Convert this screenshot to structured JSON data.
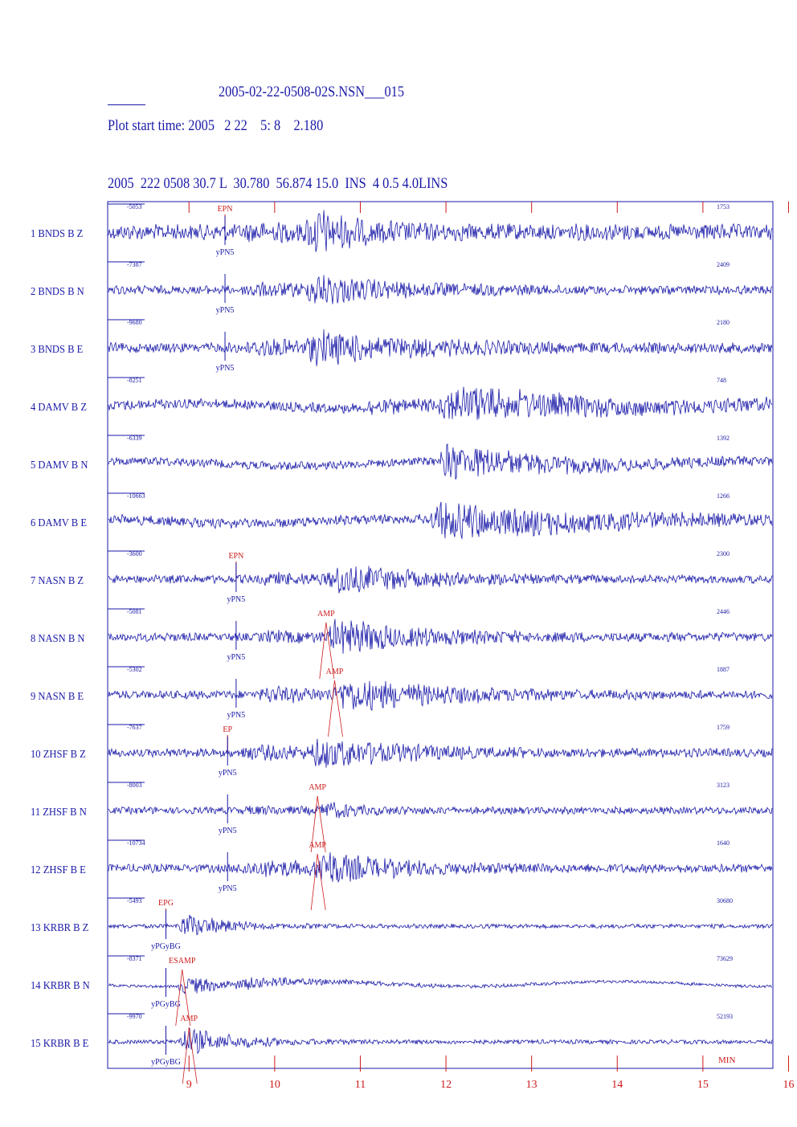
{
  "header": {
    "title": "2005-02-22-0508-02S.NSN___015",
    "plot_start": "Plot start time: 2005   2 22    5: 8    2.180",
    "event_line": "2005  222 0508 30.7 L  30.780  56.874 15.0  INS  4 0.5 4.0LINS"
  },
  "colors": {
    "trace": "#1a1aa8",
    "pick": "#cc1a1a",
    "frame": "#1a1aa8"
  },
  "axis": {
    "unit_label": "MIN",
    "ticks": [
      "9",
      "10",
      "11",
      "12",
      "13",
      "14",
      "15",
      "16"
    ]
  },
  "channels": [
    {
      "label": "1  BNDS   B  Z",
      "left_value": "-5053",
      "right_value": "1753",
      "amp": 11,
      "bursts": [
        {
          "t": 9.6,
          "a": 0.4,
          "d": 1.6
        },
        {
          "t": 10.35,
          "a": 2.8,
          "d": 0.45
        }
      ],
      "picks": [
        {
          "t": 9.42,
          "text": "EPN",
          "color": "pick",
          "pos": "above"
        },
        {
          "t": 9.42,
          "text": "yPN5",
          "color": "trace",
          "pos": "below"
        }
      ]
    },
    {
      "label": "2  BNDS   B  N",
      "left_value": "-7387",
      "right_value": "2409",
      "amp": 6,
      "bursts": [
        {
          "t": 9.6,
          "a": 1.0,
          "d": 1.6
        },
        {
          "t": 10.35,
          "a": 2.6,
          "d": 0.9
        }
      ],
      "picks": [
        {
          "t": 9.42,
          "text": "yPN5",
          "color": "trace",
          "pos": "below"
        }
      ]
    },
    {
      "label": "3  BNDS   B  E",
      "left_value": "-9680",
      "right_value": "2180",
      "amp": 7,
      "bursts": [
        {
          "t": 9.6,
          "a": 1.0,
          "d": 1.6
        },
        {
          "t": 10.35,
          "a": 2.6,
          "d": 1.0
        }
      ],
      "picks": [
        {
          "t": 9.42,
          "text": "yPN5",
          "color": "trace",
          "pos": "below"
        }
      ]
    },
    {
      "label": "4  DAMV   B  Z",
      "left_value": "-8251",
      "right_value": "748",
      "amp": 7,
      "bursts": [
        {
          "t": 11.0,
          "a": 0.8,
          "d": 1.0
        },
        {
          "t": 11.9,
          "a": 3.0,
          "d": 1.8
        }
      ],
      "picks": []
    },
    {
      "label": "5  DAMV   B  N",
      "left_value": "-6339",
      "right_value": "1392",
      "amp": 6,
      "bursts": [
        {
          "t": 11.9,
          "a": 3.8,
          "d": 1.2
        }
      ],
      "picks": []
    },
    {
      "label": "6  DAMV   B  E",
      "left_value": "-10663",
      "right_value": "1266",
      "amp": 7,
      "bursts": [
        {
          "t": 11.8,
          "a": 3.2,
          "d": 1.8
        }
      ],
      "picks": []
    },
    {
      "label": "7  NASN   B  Z",
      "left_value": "-3600",
      "right_value": "2300",
      "amp": 6,
      "bursts": [
        {
          "t": 9.8,
          "a": 0.8,
          "d": 1.0
        },
        {
          "t": 10.6,
          "a": 3.5,
          "d": 0.8
        }
      ],
      "picks": [
        {
          "t": 9.55,
          "text": "EPN",
          "color": "pick",
          "pos": "above"
        },
        {
          "t": 9.55,
          "text": "yPN5",
          "color": "trace",
          "pos": "below"
        }
      ]
    },
    {
      "label": "8  NASN   B  N",
      "left_value": "-5081",
      "right_value": "2446",
      "amp": 6,
      "bursts": [
        {
          "t": 9.8,
          "a": 0.8,
          "d": 1.2
        },
        {
          "t": 10.6,
          "a": 3.5,
          "d": 1.0
        }
      ],
      "picks": [
        {
          "t": 9.55,
          "text": "yPN5",
          "color": "trace",
          "pos": "below"
        },
        {
          "t": 10.6,
          "text": "AMP",
          "color": "pick",
          "pos": "above"
        }
      ]
    },
    {
      "label": "9  NASN   B  E",
      "left_value": "-5302",
      "right_value": "1887",
      "amp": 6,
      "bursts": [
        {
          "t": 9.8,
          "a": 1.2,
          "d": 1.2
        },
        {
          "t": 10.7,
          "a": 3.0,
          "d": 1.2
        }
      ],
      "picks": [
        {
          "t": 9.55,
          "text": "yPN5",
          "color": "trace",
          "pos": "below"
        },
        {
          "t": 10.7,
          "text": "AMP",
          "color": "pick",
          "pos": "above"
        }
      ]
    },
    {
      "label": "10  ZHSF   B  Z",
      "left_value": "-7637",
      "right_value": "1759",
      "amp": 6,
      "bursts": [
        {
          "t": 9.55,
          "a": 1.2,
          "d": 1.0
        },
        {
          "t": 10.4,
          "a": 3.0,
          "d": 1.0
        }
      ],
      "picks": [
        {
          "t": 9.45,
          "text": "EP",
          "color": "pick",
          "pos": "above"
        },
        {
          "t": 9.45,
          "text": "yPN5",
          "color": "trace",
          "pos": "below"
        }
      ]
    },
    {
      "label": "11  ZHSF   B  N",
      "left_value": "-8003",
      "right_value": "3123",
      "amp": 5,
      "bursts": [
        {
          "t": 9.6,
          "a": 0.5,
          "d": 1.0
        },
        {
          "t": 10.5,
          "a": 2.6,
          "d": 0.3
        }
      ],
      "picks": [
        {
          "t": 9.45,
          "text": "yPN5",
          "color": "trace",
          "pos": "below"
        },
        {
          "t": 10.5,
          "text": "AMP",
          "color": "pick",
          "pos": "above"
        }
      ]
    },
    {
      "label": "12  ZHSF   B  E",
      "left_value": "-10734",
      "right_value": "1640",
      "amp": 6,
      "bursts": [
        {
          "t": 9.55,
          "a": 1.5,
          "d": 1.2
        },
        {
          "t": 10.45,
          "a": 3.5,
          "d": 0.7
        }
      ],
      "picks": [
        {
          "t": 9.45,
          "text": "yPN5",
          "color": "trace",
          "pos": "below"
        },
        {
          "t": 10.5,
          "text": "AMP",
          "color": "pick",
          "pos": "above"
        }
      ]
    },
    {
      "label": "13  KRBR   B  Z",
      "left_value": "-5493",
      "right_value": "30680",
      "amp": 3,
      "bursts": [
        {
          "t": 8.85,
          "a": 7.0,
          "d": 0.45
        }
      ],
      "picks": [
        {
          "t": 8.73,
          "text": "EPG",
          "color": "pick",
          "pos": "above"
        },
        {
          "t": 8.73,
          "text": "yPGyBG",
          "color": "trace",
          "pos": "below"
        }
      ]
    },
    {
      "label": "14  KRBR   B  N",
      "left_value": "-8371",
      "right_value": "73629",
      "amp": 2,
      "bursts": [
        {
          "t": 8.85,
          "a": 9.0,
          "d": 0.4
        },
        {
          "t": 9.5,
          "a": 2.5,
          "d": 1.5
        }
      ],
      "picks": [
        {
          "t": 8.92,
          "text": "ESAMP",
          "color": "pick",
          "pos": "above"
        },
        {
          "t": 8.73,
          "text": "yPGyBG",
          "color": "trace",
          "pos": "below"
        }
      ]
    },
    {
      "label": "15  KRBR   B  E",
      "left_value": "-9970",
      "right_value": "52193",
      "amp": 3,
      "bursts": [
        {
          "t": 8.85,
          "a": 7.0,
          "d": 0.6
        }
      ],
      "picks": [
        {
          "t": 9.0,
          "text": "AMP",
          "color": "pick",
          "pos": "above"
        },
        {
          "t": 8.73,
          "text": "yPGyBG",
          "color": "trace",
          "pos": "below"
        }
      ]
    }
  ]
}
